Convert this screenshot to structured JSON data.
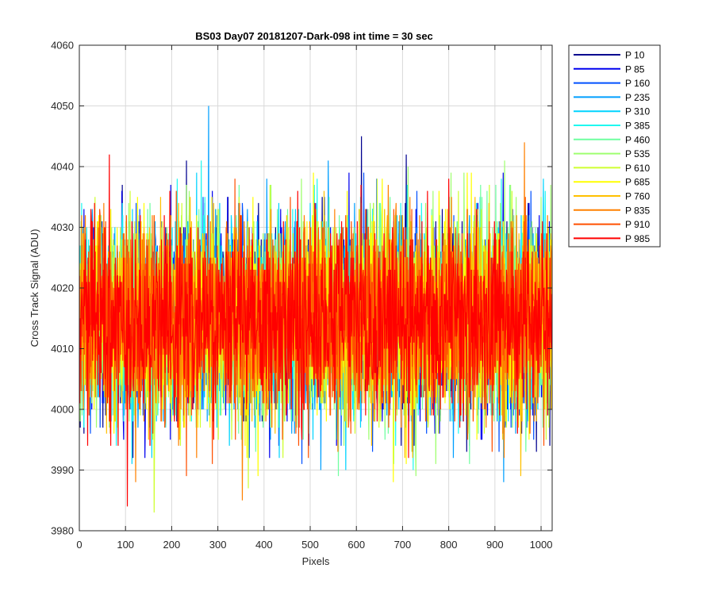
{
  "chart_data": {
    "type": "line",
    "title": "BS03 Day07 20181207-Dark-098 int time = 30 sec",
    "xlabel": "Pixels",
    "ylabel": "Cross Track Signal (ADU)",
    "xlim": [
      0,
      1024
    ],
    "ylim": [
      3980,
      4060
    ],
    "xticks": [
      0,
      100,
      200,
      300,
      400,
      500,
      600,
      700,
      800,
      900,
      1000
    ],
    "yticks": [
      3980,
      3990,
      4000,
      4010,
      4020,
      4030,
      4040,
      4050,
      4060
    ],
    "grid": true,
    "legend_position": "outside-top-right",
    "noise_model": {
      "points_per_series": 1024,
      "center": 4015,
      "typical_spread": [
        4000,
        4032
      ],
      "overall_range": [
        3982,
        4054
      ]
    },
    "series": [
      {
        "name": "P 10",
        "color": "#00008f"
      },
      {
        "name": "P 85",
        "color": "#0000ef"
      },
      {
        "name": "P 160",
        "color": "#0050ff"
      },
      {
        "name": "P 235",
        "color": "#009fff"
      },
      {
        "name": "P 310",
        "color": "#00d4ff"
      },
      {
        "name": "P 385",
        "color": "#1ff8f0"
      },
      {
        "name": "P 460",
        "color": "#6fffa0"
      },
      {
        "name": "P 535",
        "color": "#9fff70"
      },
      {
        "name": "P 610",
        "color": "#cfff30"
      },
      {
        "name": "P 685",
        "color": "#ffff00"
      },
      {
        "name": "P 760",
        "color": "#ffc000"
      },
      {
        "name": "P 835",
        "color": "#ff8000"
      },
      {
        "name": "P 910",
        "color": "#ff5000"
      },
      {
        "name": "P 985",
        "color": "#ff0000"
      }
    ]
  }
}
